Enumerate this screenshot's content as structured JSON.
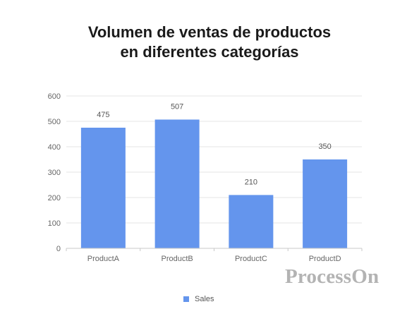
{
  "chart_data": {
    "type": "bar",
    "title_lines": [
      "Volumen de ventas de productos",
      "en diferentes categorías"
    ],
    "categories": [
      "ProductA",
      "ProductB",
      "ProductC",
      "ProductD"
    ],
    "series": [
      {
        "name": "Sales",
        "values": [
          475,
          507,
          210,
          350
        ],
        "color": "#6495ed"
      }
    ],
    "ylim": [
      0,
      600
    ],
    "yticks": [
      0,
      100,
      200,
      300,
      400,
      500,
      600
    ],
    "grid": true,
    "legend_position": "bottom-center",
    "data_labels": true
  },
  "watermark": "ProcessOn"
}
